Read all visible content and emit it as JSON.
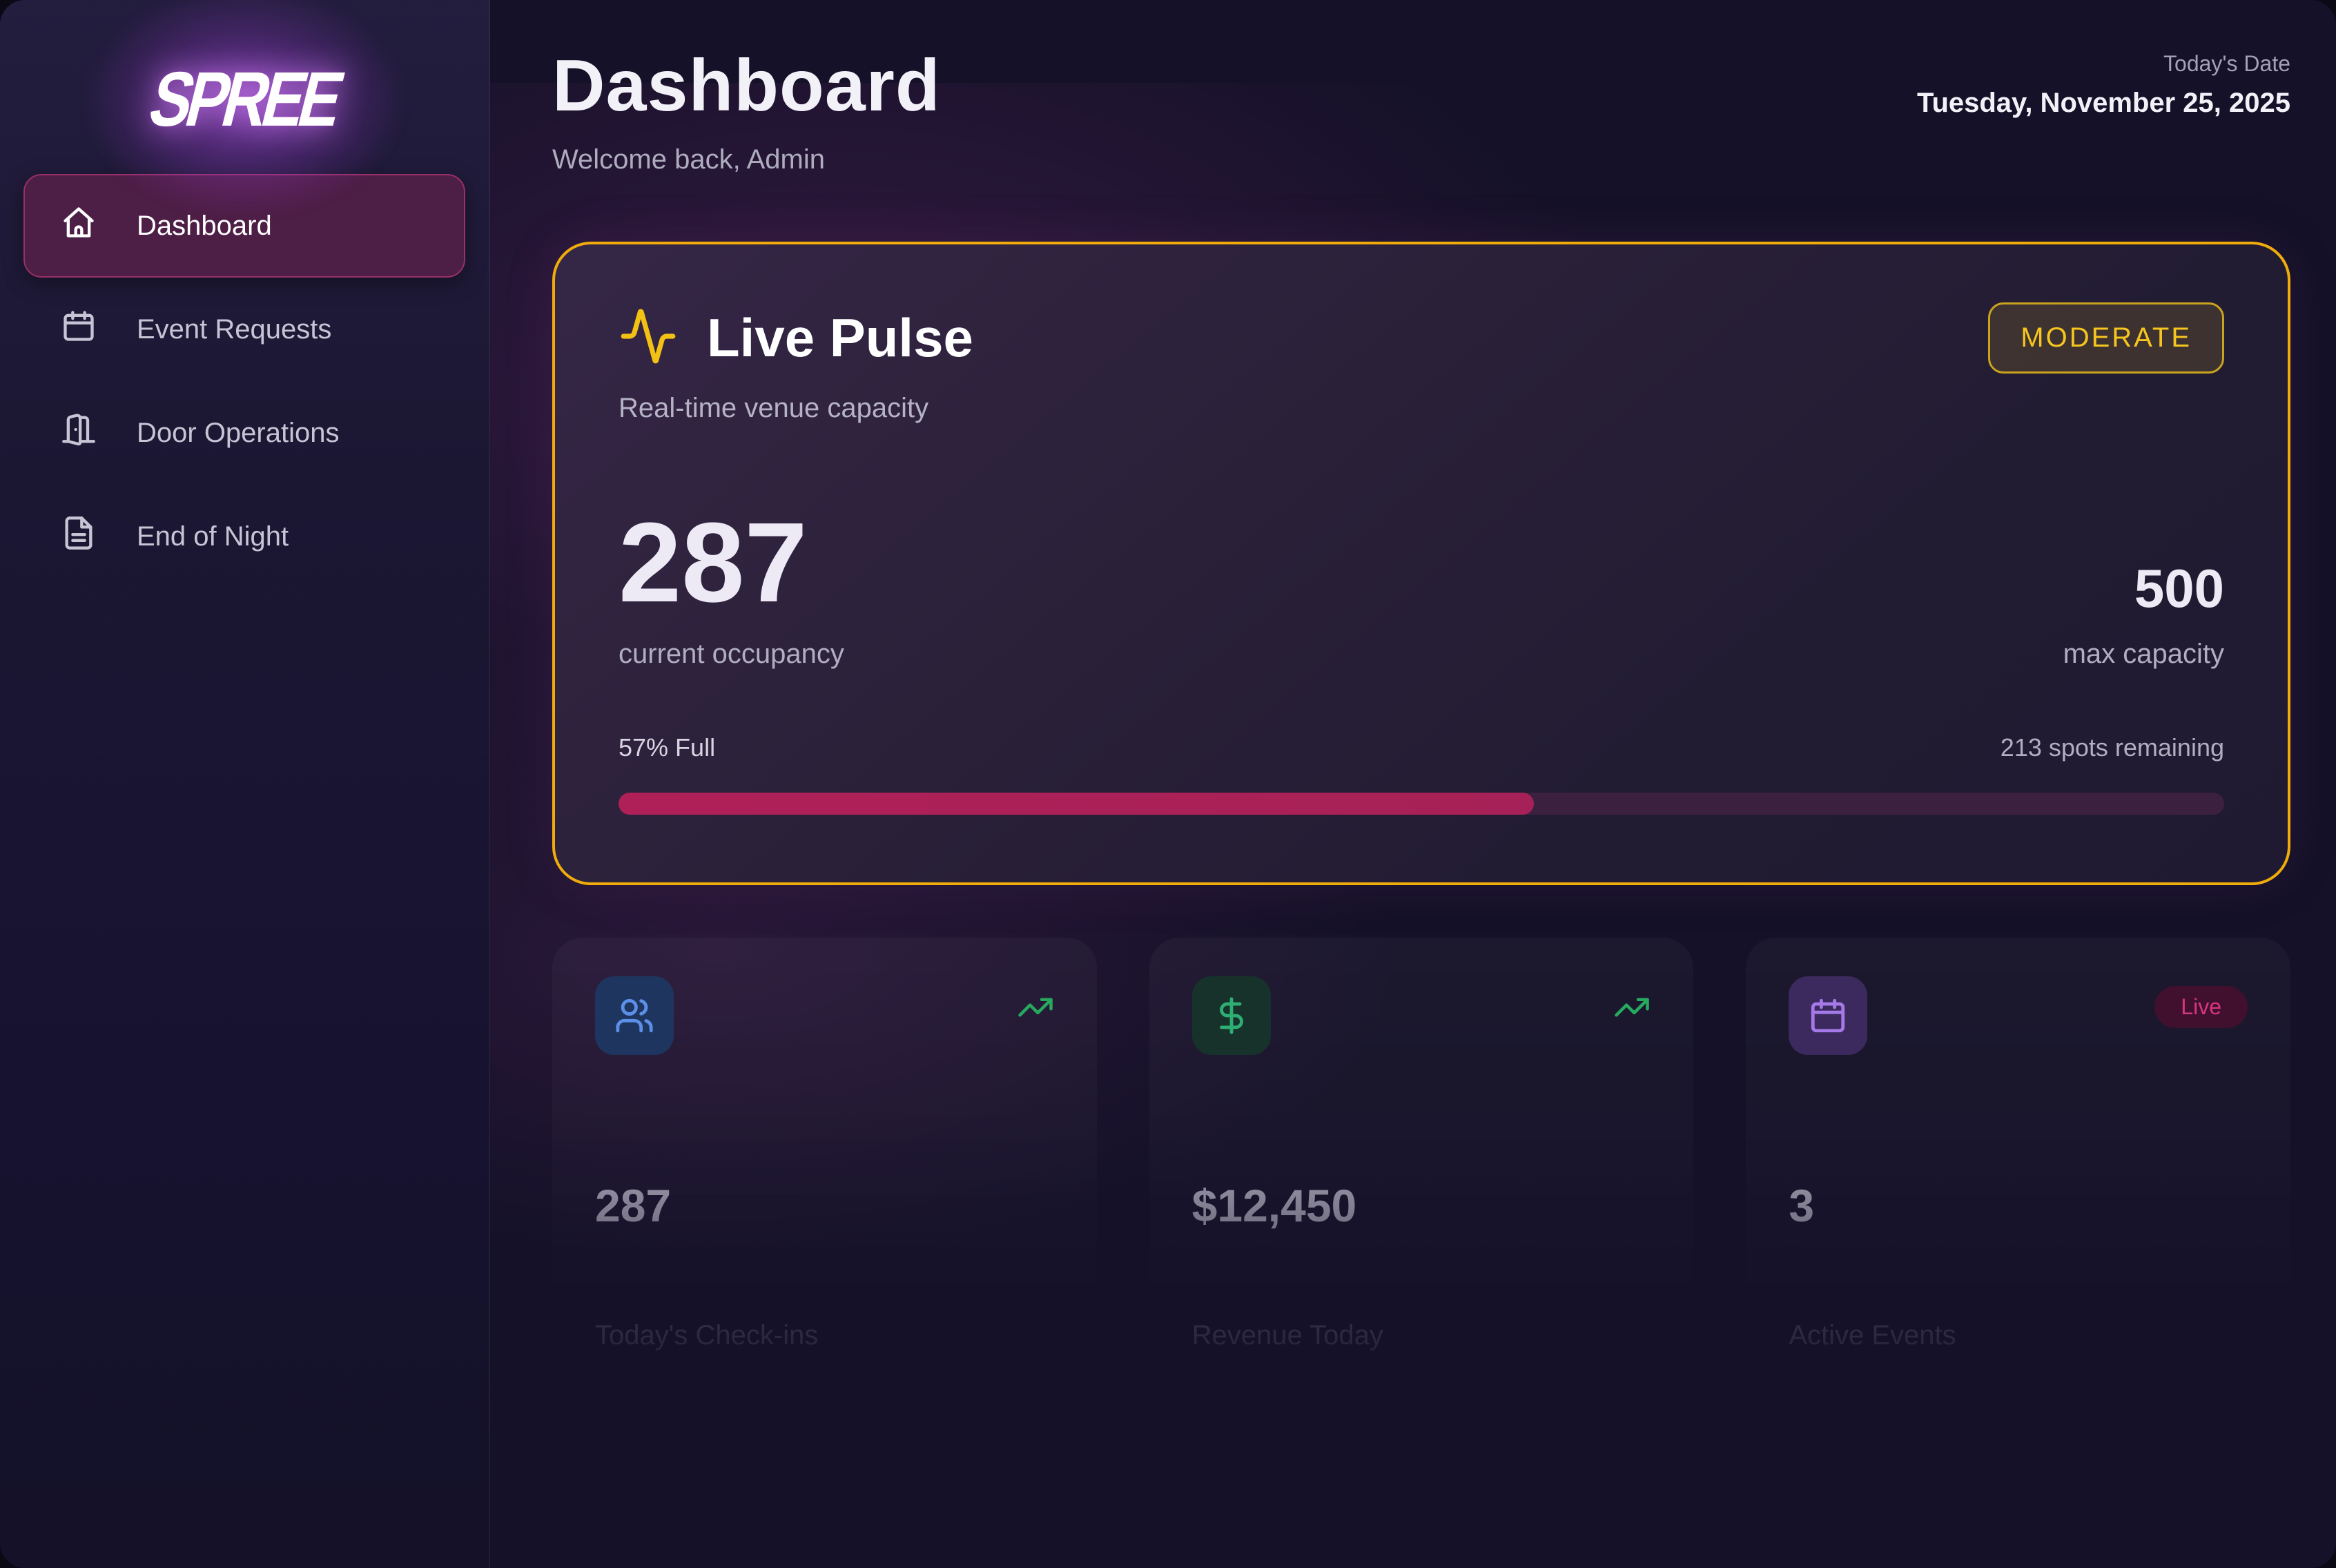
{
  "brand": {
    "logo_text": "SPREE"
  },
  "sidebar": {
    "items": [
      {
        "label": "Dashboard",
        "icon": "home-icon",
        "active": true
      },
      {
        "label": "Event Requests",
        "icon": "calendar-icon",
        "active": false
      },
      {
        "label": "Door Operations",
        "icon": "door-open-icon",
        "active": false
      },
      {
        "label": "End of Night",
        "icon": "file-text-icon",
        "active": false
      }
    ]
  },
  "header": {
    "title": "Dashboard",
    "subtitle": "Welcome back, Admin",
    "date_label": "Today's Date",
    "date_value": "Tuesday, November 25, 2025"
  },
  "live_pulse": {
    "title": "Live Pulse",
    "icon": "activity-pulse-icon",
    "status_badge": "MODERATE",
    "subtitle": "Real-time venue capacity",
    "current_occupancy": "287",
    "current_occupancy_label": "current occupancy",
    "max_capacity": "500",
    "max_capacity_label": "max capacity",
    "percent_full_text": "57% Full",
    "spots_remaining_text": "213 spots remaining",
    "progress_percent": 57
  },
  "stats": [
    {
      "icon": "users-icon",
      "value": "287",
      "label": "Today's Check-ins",
      "trend_icon": "trending-up-icon"
    },
    {
      "icon": "dollar-sign-icon",
      "value": "$12,450",
      "label": "Revenue Today",
      "trend_icon": "trending-up-icon"
    },
    {
      "icon": "calendar-icon",
      "value": "3",
      "label": "Active Events",
      "badge": "Live"
    }
  ],
  "colors": {
    "background": "#141128",
    "sidebar_active_bg": "#4d1e46",
    "sidebar_active_border": "#9a3067",
    "pulse_card_border": "#f0ac0b",
    "badge_yellow": "#f6c61e",
    "progress_fill": "#a62157",
    "progress_track": "#3c2040",
    "trend_green": "#27a95e",
    "live_pink": "#d6367f",
    "logo_glow_purple": "#ba55f7"
  }
}
